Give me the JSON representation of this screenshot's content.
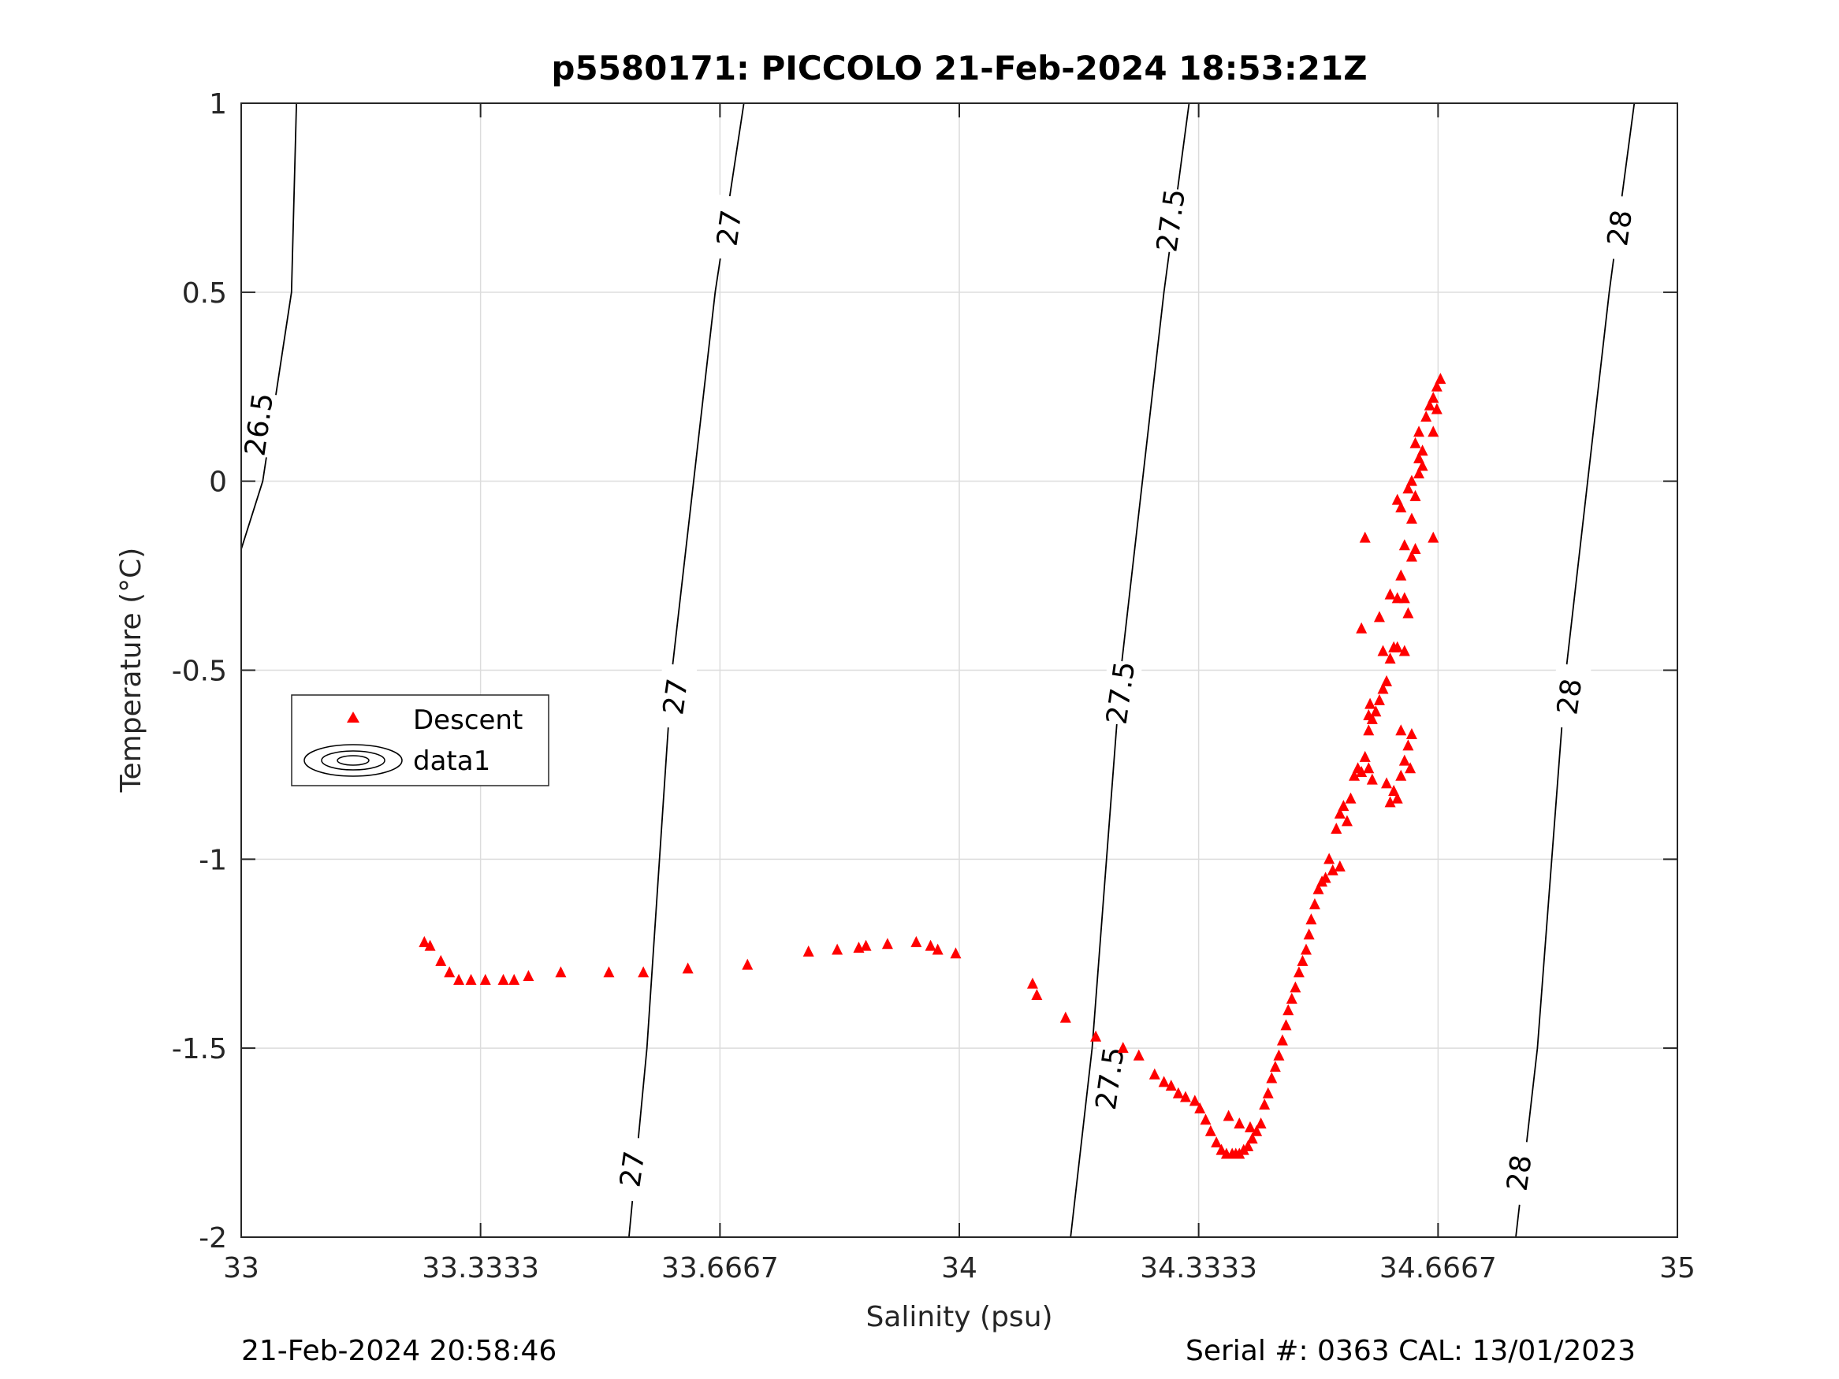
{
  "chart_data": {
    "type": "scatter",
    "title": "p5580171: PICCOLO 21-Feb-2024 18:53:21Z",
    "xlabel": "Salinity (psu)",
    "ylabel": "Temperature (°C)",
    "xlim": [
      33,
      35
    ],
    "ylim": [
      -2,
      1
    ],
    "x_ticks": [
      33,
      33.3333,
      33.6667,
      34,
      34.3333,
      34.6667,
      35
    ],
    "x_tick_labels": [
      "33",
      "33.3333",
      "33.6667",
      "34",
      "34.3333",
      "34.6667",
      "35"
    ],
    "y_ticks": [
      -2,
      -1.5,
      -1,
      -0.5,
      0,
      0.5,
      1
    ],
    "y_tick_labels": [
      "-2",
      "-1.5",
      "-1",
      "-0.5",
      "0",
      "0.5",
      "1"
    ],
    "grid": true,
    "legend": {
      "placement": "left-middle",
      "entries": [
        "Descent",
        "data1"
      ]
    },
    "footer_left": "21-Feb-2024 20:58:46",
    "footer_right": "Serial #: 0363  CAL: 13/01/2023",
    "contours": [
      {
        "level": "26.5",
        "points": [
          [
            33.0,
            -0.18
          ],
          [
            33.03,
            0.0
          ],
          [
            33.07,
            0.5
          ],
          [
            33.077,
            1.0
          ]
        ]
      },
      {
        "level": "27",
        "points": [
          [
            33.54,
            -2.0
          ],
          [
            33.565,
            -1.5
          ],
          [
            33.6,
            -0.5
          ],
          [
            33.66,
            0.5
          ],
          [
            33.7,
            1.0
          ]
        ]
      },
      {
        "level": "27.5",
        "points": [
          [
            34.155,
            -2.0
          ],
          [
            34.185,
            -1.5
          ],
          [
            34.225,
            -0.5
          ],
          [
            34.285,
            0.5
          ],
          [
            34.32,
            1.0
          ]
        ]
      },
      {
        "level": "28",
        "points": [
          [
            34.775,
            -2.0
          ],
          [
            34.805,
            -1.5
          ],
          [
            34.845,
            -0.5
          ],
          [
            34.905,
            0.5
          ],
          [
            34.94,
            1.0
          ]
        ]
      }
    ],
    "contour_labels": [
      {
        "text": "26.5",
        "x": 33.025,
        "y": 0.15
      },
      {
        "text": "27",
        "x": 33.68,
        "y": 0.67
      },
      {
        "text": "27",
        "x": 33.605,
        "y": -0.57
      },
      {
        "text": "27",
        "x": 33.545,
        "y": -1.82
      },
      {
        "text": "27.5",
        "x": 34.295,
        "y": 0.69
      },
      {
        "text": "27.5",
        "x": 34.225,
        "y": -0.56
      },
      {
        "text": "27.5",
        "x": 28.0,
        "y": 0.0
      },
      {
        "text": "28",
        "x": 34.92,
        "y": 0.67
      },
      {
        "text": "28",
        "x": 34.85,
        "y": -0.57
      },
      {
        "text": "28",
        "x": 34.78,
        "y": -1.83
      }
    ],
    "series": [
      {
        "name": "Descent",
        "color": "#ff0000",
        "marker": "triangle",
        "points": [
          [
            33.255,
            -1.22
          ],
          [
            33.263,
            -1.23
          ],
          [
            33.278,
            -1.27
          ],
          [
            33.29,
            -1.3
          ],
          [
            33.303,
            -1.32
          ],
          [
            33.32,
            -1.32
          ],
          [
            33.34,
            -1.32
          ],
          [
            33.365,
            -1.32
          ],
          [
            33.38,
            -1.32
          ],
          [
            33.4,
            -1.31
          ],
          [
            33.445,
            -1.3
          ],
          [
            33.512,
            -1.3
          ],
          [
            33.56,
            -1.3
          ],
          [
            33.622,
            -1.29
          ],
          [
            33.705,
            -1.28
          ],
          [
            33.79,
            -1.245
          ],
          [
            33.83,
            -1.24
          ],
          [
            33.86,
            -1.235
          ],
          [
            33.87,
            -1.23
          ],
          [
            33.9,
            -1.225
          ],
          [
            33.94,
            -1.22
          ],
          [
            33.96,
            -1.23
          ],
          [
            33.97,
            -1.24
          ],
          [
            33.995,
            -1.25
          ],
          [
            34.102,
            -1.33
          ],
          [
            34.108,
            -1.36
          ],
          [
            34.148,
            -1.42
          ],
          [
            34.19,
            -1.47
          ],
          [
            34.228,
            -1.5
          ],
          [
            34.25,
            -1.52
          ],
          [
            34.272,
            -1.57
          ],
          [
            34.285,
            -1.59
          ],
          [
            34.295,
            -1.6
          ],
          [
            34.305,
            -1.62
          ],
          [
            34.315,
            -1.63
          ],
          [
            34.328,
            -1.64
          ],
          [
            34.335,
            -1.66
          ],
          [
            34.343,
            -1.69
          ],
          [
            34.35,
            -1.72
          ],
          [
            34.358,
            -1.75
          ],
          [
            34.365,
            -1.77
          ],
          [
            34.372,
            -1.78
          ],
          [
            34.38,
            -1.78
          ],
          [
            34.385,
            -1.78
          ],
          [
            34.39,
            -1.78
          ],
          [
            34.396,
            -1.77
          ],
          [
            34.402,
            -1.76
          ],
          [
            34.408,
            -1.74
          ],
          [
            34.414,
            -1.72
          ],
          [
            34.375,
            -1.68
          ],
          [
            34.39,
            -1.7
          ],
          [
            34.405,
            -1.71
          ],
          [
            34.42,
            -1.7
          ],
          [
            34.425,
            -1.65
          ],
          [
            34.43,
            -1.62
          ],
          [
            34.435,
            -1.58
          ],
          [
            34.44,
            -1.55
          ],
          [
            34.445,
            -1.52
          ],
          [
            34.45,
            -1.48
          ],
          [
            34.455,
            -1.44
          ],
          [
            34.458,
            -1.4
          ],
          [
            34.463,
            -1.37
          ],
          [
            34.468,
            -1.34
          ],
          [
            34.473,
            -1.3
          ],
          [
            34.478,
            -1.27
          ],
          [
            34.483,
            -1.24
          ],
          [
            34.487,
            -1.2
          ],
          [
            34.49,
            -1.16
          ],
          [
            34.495,
            -1.12
          ],
          [
            34.5,
            -1.08
          ],
          [
            34.505,
            -1.06
          ],
          [
            34.51,
            -1.05
          ],
          [
            34.52,
            -1.03
          ],
          [
            34.515,
            -1.0
          ],
          [
            34.53,
            -1.02
          ],
          [
            34.525,
            -0.92
          ],
          [
            34.53,
            -0.88
          ],
          [
            34.535,
            -0.86
          ],
          [
            34.54,
            -0.9
          ],
          [
            34.545,
            -0.84
          ],
          [
            34.55,
            -0.78
          ],
          [
            34.555,
            -0.76
          ],
          [
            34.56,
            -0.77
          ],
          [
            34.57,
            -0.76
          ],
          [
            34.575,
            -0.79
          ],
          [
            34.565,
            -0.73
          ],
          [
            34.57,
            -0.66
          ],
          [
            34.575,
            -0.63
          ],
          [
            34.58,
            -0.61
          ],
          [
            34.572,
            -0.59
          ],
          [
            34.585,
            -0.58
          ],
          [
            34.59,
            -0.55
          ],
          [
            34.595,
            -0.53
          ],
          [
            34.59,
            -0.45
          ],
          [
            34.6,
            -0.47
          ],
          [
            34.605,
            -0.44
          ],
          [
            34.61,
            -0.44
          ],
          [
            34.62,
            -0.45
          ],
          [
            34.595,
            -0.8
          ],
          [
            34.6,
            -0.85
          ],
          [
            34.605,
            -0.82
          ],
          [
            34.61,
            -0.84
          ],
          [
            34.615,
            -0.78
          ],
          [
            34.62,
            -0.74
          ],
          [
            34.625,
            -0.7
          ],
          [
            34.63,
            -0.67
          ],
          [
            34.628,
            -0.76
          ],
          [
            34.615,
            -0.66
          ],
          [
            34.56,
            -0.39
          ],
          [
            34.585,
            -0.36
          ],
          [
            34.6,
            -0.3
          ],
          [
            34.61,
            -0.31
          ],
          [
            34.62,
            -0.31
          ],
          [
            34.63,
            -0.2
          ],
          [
            34.635,
            -0.18
          ],
          [
            34.62,
            -0.17
          ],
          [
            34.61,
            -0.05
          ],
          [
            34.615,
            -0.07
          ],
          [
            34.625,
            -0.02
          ],
          [
            34.63,
            0.0
          ],
          [
            34.635,
            -0.04
          ],
          [
            34.64,
            0.02
          ],
          [
            34.645,
            0.04
          ],
          [
            34.635,
            0.1
          ],
          [
            34.64,
            0.13
          ],
          [
            34.65,
            0.17
          ],
          [
            34.655,
            0.2
          ],
          [
            34.66,
            0.22
          ],
          [
            34.665,
            0.25
          ],
          [
            34.67,
            0.27
          ],
          [
            34.665,
            0.19
          ],
          [
            34.66,
            0.13
          ],
          [
            34.64,
            0.06
          ],
          [
            34.645,
            0.08
          ],
          [
            34.66,
            -0.15
          ],
          [
            34.565,
            -0.15
          ],
          [
            34.625,
            -0.35
          ],
          [
            34.615,
            -0.25
          ],
          [
            34.63,
            -0.1
          ],
          [
            34.57,
            -0.62
          ]
        ]
      }
    ]
  }
}
